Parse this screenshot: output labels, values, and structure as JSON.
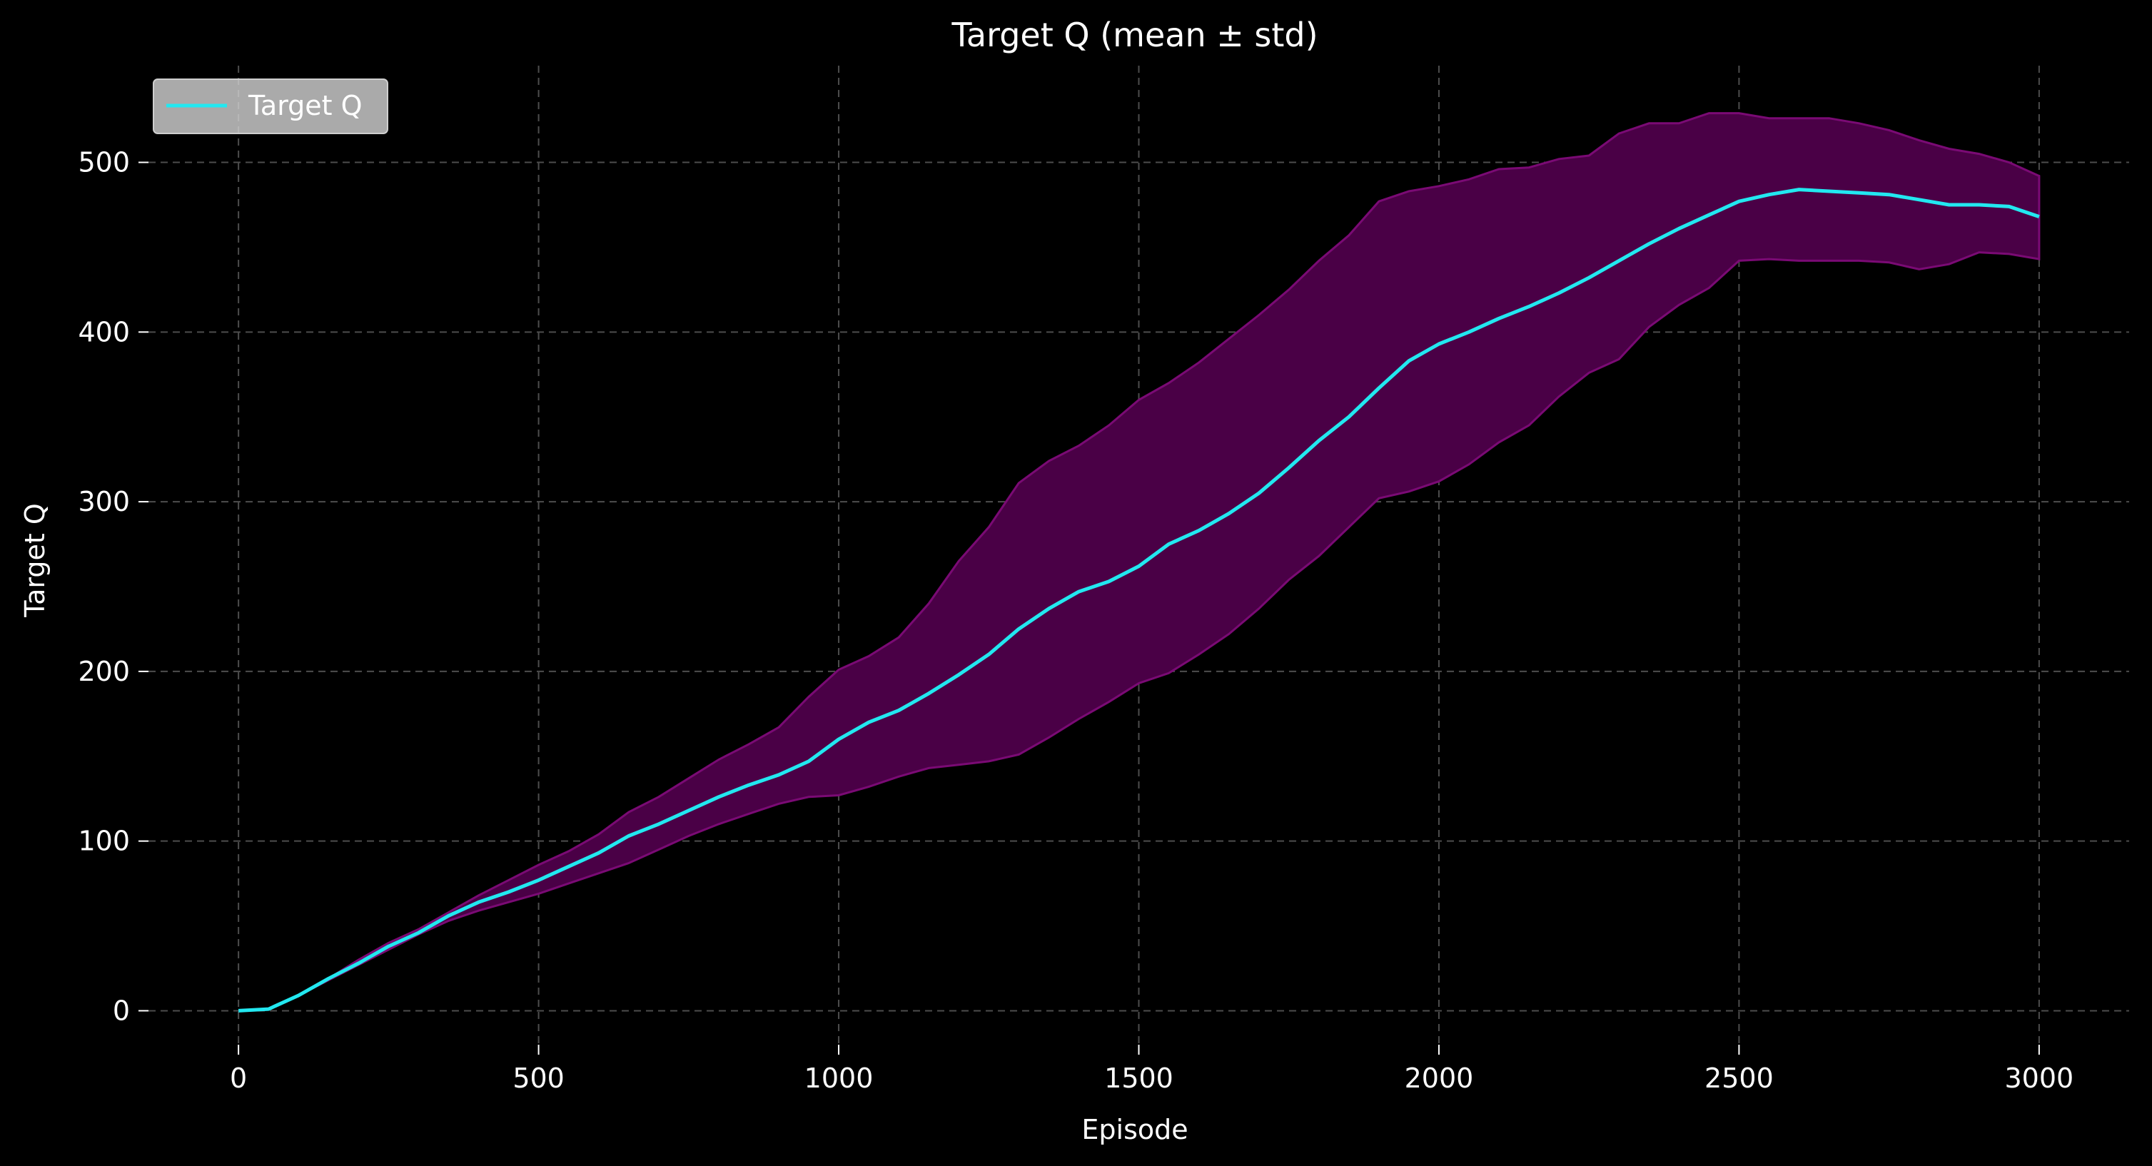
{
  "chart_data": {
    "type": "line",
    "title": "Target Q (mean ± std)",
    "xlabel": "Episode",
    "ylabel": "Target Q",
    "xlim": [
      -150,
      3150
    ],
    "ylim": [
      -20,
      557
    ],
    "xticks": [
      0,
      500,
      1000,
      1500,
      2000,
      2500,
      3000
    ],
    "yticks": [
      0,
      100,
      200,
      300,
      400,
      500
    ],
    "grid": true,
    "legend": {
      "position": "top-left",
      "entries": [
        "Target Q"
      ]
    },
    "colors": {
      "background": "#000000",
      "mean_line": "#22e8f0",
      "band_fill": "#4a0046",
      "band_edge": "#7a0a74",
      "grid": "#4d4d4d",
      "text": "#ffffff"
    },
    "series": [
      {
        "name": "Target Q",
        "x": [
          0,
          50,
          100,
          150,
          200,
          250,
          300,
          350,
          400,
          450,
          500,
          550,
          600,
          650,
          700,
          750,
          800,
          850,
          900,
          950,
          1000,
          1050,
          1100,
          1150,
          1200,
          1250,
          1300,
          1350,
          1400,
          1450,
          1500,
          1550,
          1600,
          1650,
          1700,
          1750,
          1800,
          1850,
          1900,
          1950,
          2000,
          2050,
          2100,
          2150,
          2200,
          2250,
          2300,
          2350,
          2400,
          2450,
          2500,
          2550,
          2600,
          2650,
          2700,
          2750,
          2800,
          2850,
          2900,
          2950,
          3000
        ],
        "mean": [
          0,
          1,
          9,
          19,
          28,
          38,
          46,
          56,
          64,
          70,
          77,
          85,
          93,
          103,
          110,
          118,
          126,
          133,
          139,
          147,
          160,
          170,
          177,
          187,
          198,
          210,
          225,
          237,
          247,
          253,
          262,
          275,
          283,
          293,
          305,
          320,
          336,
          350,
          367,
          383,
          393,
          400,
          408,
          415,
          423,
          432,
          442,
          452,
          461,
          469,
          477,
          481,
          484,
          483,
          482,
          481,
          478,
          475,
          475,
          474,
          468
        ],
        "lower": [
          0,
          1,
          9,
          18,
          27,
          36,
          45,
          53,
          59,
          64,
          69,
          75,
          81,
          87,
          95,
          103,
          110,
          116,
          122,
          126,
          127,
          132,
          138,
          143,
          145,
          147,
          151,
          161,
          172,
          182,
          193,
          199,
          210,
          222,
          237,
          254,
          268,
          285,
          302,
          306,
          312,
          322,
          335,
          345,
          362,
          376,
          384,
          403,
          416,
          426,
          442,
          443,
          442,
          442,
          442,
          441,
          437,
          440,
          447,
          446,
          443
        ],
        "upper": [
          0,
          1,
          9,
          19,
          30,
          40,
          48,
          58,
          68,
          77,
          86,
          94,
          104,
          117,
          126,
          137,
          148,
          157,
          167,
          185,
          201,
          209,
          220,
          240,
          265,
          285,
          311,
          324,
          333,
          345,
          360,
          370,
          382,
          396,
          410,
          425,
          442,
          457,
          477,
          483,
          486,
          490,
          496,
          497,
          502,
          504,
          517,
          523,
          523,
          529,
          529,
          526,
          526,
          526,
          523,
          519,
          513,
          508,
          505,
          500,
          492
        ]
      }
    ]
  }
}
